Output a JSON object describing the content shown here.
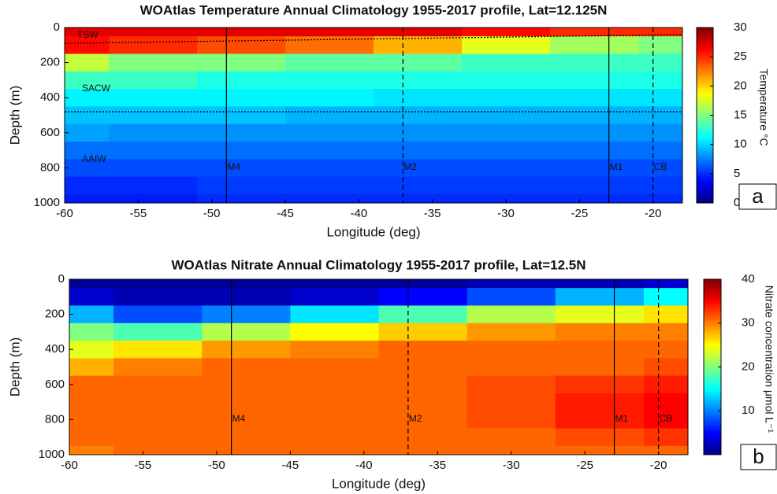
{
  "chart_data": [
    {
      "type": "heatmap",
      "title": "WOAtlas Temperature Annual Climatology 1955-2017 profile, Lat=12.125N",
      "xlabel": "Longitude (deg)",
      "ylabel": "Depth (m)",
      "colorbar_label": "Temperature °C",
      "panel_label": "a",
      "x": [
        -60,
        -54,
        -48,
        -42,
        -36,
        -30,
        -24,
        -18
      ],
      "y": [
        0,
        100,
        200,
        300,
        400,
        500,
        600,
        700,
        800,
        900,
        1000
      ],
      "z": [
        [
          27,
          27,
          27,
          27,
          27,
          26,
          25,
          25
        ],
        [
          26,
          25,
          24,
          23,
          21,
          18,
          16,
          15
        ],
        [
          17,
          15,
          15,
          14,
          14,
          13,
          13,
          13
        ],
        [
          13,
          13,
          12,
          12,
          12,
          12,
          12,
          12
        ],
        [
          11,
          11,
          11,
          11,
          10.5,
          10.5,
          10.5,
          10.5
        ],
        [
          9.5,
          9.5,
          9.5,
          9,
          9,
          9,
          9,
          9
        ],
        [
          8.5,
          8,
          8,
          8,
          8,
          8,
          8,
          8
        ],
        [
          7,
          7,
          7,
          7,
          7,
          7,
          7,
          7
        ],
        [
          6,
          6,
          6,
          6,
          6,
          6,
          6,
          6
        ],
        [
          5,
          5,
          5.5,
          5.5,
          5.5,
          5.5,
          5.5,
          5.5
        ],
        [
          4.5,
          4.5,
          5,
          5,
          5,
          5,
          5,
          5
        ]
      ],
      "xlim": [
        -60,
        -18
      ],
      "xticks": [
        -60,
        -55,
        -50,
        -45,
        -40,
        -35,
        -30,
        -25,
        -20
      ],
      "ylim": [
        0,
        1000
      ],
      "yticks": [
        0,
        200,
        400,
        600,
        800,
        1000
      ],
      "y_inverted": true,
      "clim": [
        0,
        30
      ],
      "cticks": [
        0,
        5,
        10,
        15,
        20,
        25,
        30
      ],
      "colormap": "jet",
      "stations": [
        {
          "name": "M4",
          "lon": -49,
          "style": "solid"
        },
        {
          "name": "M2",
          "lon": -37,
          "style": "dashed"
        },
        {
          "name": "M1",
          "lon": -23,
          "style": "solid"
        },
        {
          "name": "CB",
          "lon": -20,
          "style": "dashed"
        }
      ],
      "water_masses": [
        "TSW",
        "SACW",
        "AAIW"
      ],
      "layer_boundaries": [
        {
          "x": [
            -60,
            -18
          ],
          "y": [
            90,
            40
          ]
        },
        {
          "x": [
            -60,
            -18
          ],
          "y": [
            480,
            480
          ]
        }
      ]
    },
    {
      "type": "heatmap",
      "title": "WOAtlas Nitrate Annual Climatology 1955-2017 profile, Lat=12.5N",
      "xlabel": "Longitude (deg)",
      "ylabel": "Depth (m)",
      "colorbar_label": "Nitrate concentration μmol L⁻¹",
      "panel_label": "b",
      "x": [
        -60,
        -54,
        -48,
        -42,
        -36,
        -30,
        -24,
        -18
      ],
      "y": [
        0,
        100,
        200,
        300,
        400,
        500,
        600,
        700,
        800,
        900,
        1000
      ],
      "z": [
        [
          1,
          1,
          1,
          1,
          1,
          2,
          2,
          3
        ],
        [
          3,
          2,
          2,
          3,
          5,
          8,
          12,
          15
        ],
        [
          12,
          8,
          10,
          14,
          18,
          22,
          24,
          26
        ],
        [
          20,
          18,
          22,
          25,
          27,
          29,
          30,
          30
        ],
        [
          24,
          26,
          29,
          30,
          31,
          31,
          31,
          31
        ],
        [
          28,
          30,
          31,
          31,
          31,
          31,
          31,
          32
        ],
        [
          31,
          31,
          31,
          31,
          31,
          32,
          33,
          34
        ],
        [
          31,
          31,
          31,
          31,
          31,
          32,
          34,
          35
        ],
        [
          31,
          31,
          31,
          31,
          31,
          32,
          34,
          35
        ],
        [
          31,
          31,
          31,
          31,
          31,
          31,
          32,
          33
        ],
        [
          30,
          31,
          31,
          31,
          31,
          31,
          31,
          31
        ]
      ],
      "xlim": [
        -60,
        -18
      ],
      "xticks": [
        -60,
        -55,
        -50,
        -45,
        -40,
        -35,
        -30,
        -25,
        -20
      ],
      "ylim": [
        0,
        1000
      ],
      "yticks": [
        0,
        200,
        400,
        600,
        800,
        1000
      ],
      "y_inverted": true,
      "clim": [
        0,
        40
      ],
      "cticks": [
        0,
        10,
        20,
        30,
        40
      ],
      "colormap": "jet",
      "stations": [
        {
          "name": "M4",
          "lon": -49,
          "style": "solid"
        },
        {
          "name": "M2",
          "lon": -37,
          "style": "dashed"
        },
        {
          "name": "M1",
          "lon": -23,
          "style": "solid"
        },
        {
          "name": "CB",
          "lon": -20,
          "style": "dashed"
        }
      ]
    }
  ]
}
